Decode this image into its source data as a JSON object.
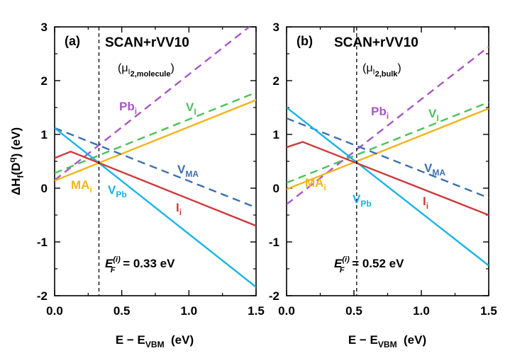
{
  "figure": {
    "ylabel_parts": {
      "pre": "ΔH",
      "sub1": "f",
      "mid": "(D",
      "sup": "q",
      "post": ") (eV)"
    },
    "xlabel_parts": {
      "pre": "E − E",
      "sub": "VBM",
      "post": "  (eV)"
    }
  },
  "chart_data": [
    {
      "type": "line",
      "panel_letter": "(a)",
      "title": "SCAN+rVV10",
      "subtitle_parts": {
        "open": "(μ",
        "sub": "I",
        "subsub": "2,molecule",
        "close": ")"
      },
      "annotation_parts": {
        "E": "E",
        "sup": "(i)",
        "sub": "F",
        "rest": " = 0.33 eV"
      },
      "fermi_level": 0.33,
      "xlim": [
        0,
        1.5
      ],
      "ylim": [
        -2,
        3
      ],
      "xticks": [
        "0.0",
        "0.5",
        "1.0",
        "1.5"
      ],
      "yticks": [
        "-2",
        "-1",
        "0",
        "1",
        "2",
        "3"
      ],
      "grid": false,
      "series": [
        {
          "name": "Pb",
          "sub": "i",
          "color": "#a855c8",
          "dash": true,
          "x": [
            0,
            1.5
          ],
          "y": [
            0.15,
            3.1
          ]
        },
        {
          "name": "V",
          "sub": "I",
          "color": "#4cc05a",
          "dash": true,
          "x": [
            0,
            1.5
          ],
          "y": [
            0.28,
            1.78
          ]
        },
        {
          "name": "MA",
          "sub": "i",
          "color": "#f2b51a",
          "dash": false,
          "x": [
            0,
            1.5
          ],
          "y": [
            0.14,
            1.64
          ]
        },
        {
          "name": "V",
          "sub": "MA",
          "color": "#3a6fb0",
          "dash": true,
          "x": [
            0,
            1.5
          ],
          "y": [
            1.12,
            -0.36
          ]
        },
        {
          "name": "V",
          "sub": "Pb",
          "color": "#1ab3e6",
          "dash": false,
          "x": [
            0,
            1.5
          ],
          "y": [
            1.12,
            -1.84
          ]
        },
        {
          "name": "I",
          "sub": "i",
          "color": "#cc3a3a",
          "dash": false,
          "x": [
            0,
            0.12,
            1.5
          ],
          "y": [
            0.56,
            0.68,
            -0.7
          ]
        }
      ]
    },
    {
      "type": "line",
      "panel_letter": "(b)",
      "title": "SCAN+rVV10",
      "subtitle_parts": {
        "open": "(μ",
        "sub": "I",
        "subsub": "2,bulk",
        "close": ")"
      },
      "annotation_parts": {
        "E": "E",
        "sup": "(i)",
        "sub": "F",
        "rest": " = 0.52 eV"
      },
      "fermi_level": 0.52,
      "xlim": [
        0,
        1.5
      ],
      "ylim": [
        -2,
        3
      ],
      "xticks": [
        "0.0",
        "0.5",
        "1.0",
        "1.5"
      ],
      "yticks": [
        "-2",
        "-1",
        "0",
        "1",
        "2",
        "3"
      ],
      "grid": false,
      "series": [
        {
          "name": "Pb",
          "sub": "i",
          "color": "#a855c8",
          "dash": true,
          "x": [
            0,
            1.5
          ],
          "y": [
            -0.3,
            2.63
          ]
        },
        {
          "name": "V",
          "sub": "I",
          "color": "#4cc05a",
          "dash": true,
          "x": [
            0,
            1.5
          ],
          "y": [
            0.1,
            1.6
          ]
        },
        {
          "name": "MA",
          "sub": "i",
          "color": "#f2b51a",
          "dash": false,
          "x": [
            0,
            1.5
          ],
          "y": [
            -0.02,
            1.48
          ]
        },
        {
          "name": "V",
          "sub": "MA",
          "color": "#3a6fb0",
          "dash": true,
          "x": [
            0,
            1.5
          ],
          "y": [
            1.3,
            -0.18
          ]
        },
        {
          "name": "V",
          "sub": "Pb",
          "color": "#1ab3e6",
          "dash": false,
          "x": [
            0,
            1.5
          ],
          "y": [
            1.5,
            -1.44
          ]
        },
        {
          "name": "I",
          "sub": "i",
          "color": "#cc3a3a",
          "dash": false,
          "x": [
            0,
            0.12,
            1.5
          ],
          "y": [
            0.76,
            0.86,
            -0.5
          ]
        }
      ]
    }
  ]
}
